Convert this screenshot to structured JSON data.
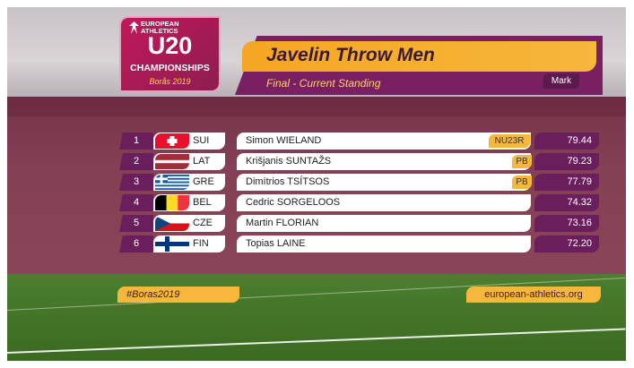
{
  "logo": {
    "org_line1": "EUROPEAN",
    "org_line2": "ATHLETICS",
    "category": "U20",
    "event_name": "CHAMPIONSHIPS",
    "location_year": "Borås 2019"
  },
  "header": {
    "title": "Javelin Throw Men",
    "subtitle": "Final - Current Standing",
    "column_label": "Mark"
  },
  "results": [
    {
      "rank": "1",
      "country": "SUI",
      "flag": "switzerland",
      "athlete": "Simon WIELAND",
      "badge": "NU23R",
      "mark": "79.44"
    },
    {
      "rank": "2",
      "country": "LAT",
      "flag": "latvia",
      "athlete": "Krišjanis SUNTAŽS",
      "badge": "PB",
      "mark": "79.23"
    },
    {
      "rank": "3",
      "country": "GRE",
      "flag": "greece",
      "athlete": "Dimítrios TSÍTSOS",
      "badge": "PB",
      "mark": "77.79"
    },
    {
      "rank": "4",
      "country": "BEL",
      "flag": "belgium",
      "athlete": "Cedric SORGELOOS",
      "badge": "",
      "mark": "74.32"
    },
    {
      "rank": "5",
      "country": "CZE",
      "flag": "czech-republic",
      "athlete": "Martin FLORIAN",
      "badge": "",
      "mark": "73.16"
    },
    {
      "rank": "6",
      "country": "FIN",
      "flag": "finland",
      "athlete": "Topias LAINE",
      "badge": "",
      "mark": "72.20"
    }
  ],
  "footer": {
    "hashtag": "#Boras2019",
    "website": "european-athletics.org"
  },
  "colors": {
    "primary_purple": "#6a1f5c",
    "accent_orange": "#f6b73c",
    "brand_magenta": "#c2185b"
  }
}
